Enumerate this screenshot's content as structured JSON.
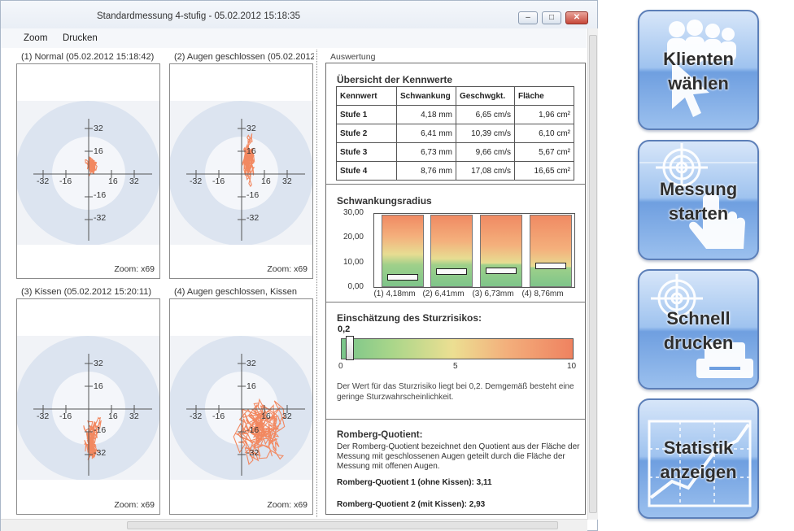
{
  "window": {
    "title": "Standardmessung 4-stufig - 05.02.2012 15:18:35",
    "controls": {
      "minimize": "–",
      "maximize": "□",
      "close": "✕"
    }
  },
  "menu": {
    "items": [
      "Zoom",
      "Drucken"
    ]
  },
  "plots": [
    {
      "title": "(1) Normal (05.02.2012 15:18:42)",
      "zoom": "Zoom: x69",
      "ticks": {
        "y_pos": [
          "32",
          "16"
        ],
        "y_neg": [
          "-16",
          "-32"
        ],
        "x_neg": [
          "-32",
          "-16"
        ],
        "x_pos": [
          "16",
          "32"
        ]
      }
    },
    {
      "title": "(2) Augen geschlossen (05.02.2012",
      "zoom": "Zoom: x69",
      "ticks": {
        "y_pos": [
          "32",
          "16"
        ],
        "y_neg": [
          "-16",
          "-32"
        ],
        "x_neg": [
          "-32",
          "-16"
        ],
        "x_pos": [
          "16",
          "32"
        ]
      }
    },
    {
      "title": "(3) Kissen (05.02.2012 15:20:11)",
      "zoom": "Zoom: x69",
      "ticks": {
        "y_pos": [
          "32",
          "16"
        ],
        "y_neg": [
          "-16",
          "-32"
        ],
        "x_neg": [
          "-32",
          "-16"
        ],
        "x_pos": [
          "16",
          "32"
        ]
      }
    },
    {
      "title": "(4) Augen geschlossen, Kissen",
      "zoom": "Zoom: x69",
      "ticks": {
        "y_pos": [
          "32",
          "16"
        ],
        "y_neg": [
          "-16",
          "-32"
        ],
        "x_neg": [
          "-32",
          "-16"
        ],
        "x_pos": [
          "16",
          "32"
        ]
      }
    }
  ],
  "evaluation": {
    "label": "Auswertung",
    "overview": {
      "title": "Übersicht der Kennwerte",
      "headers": [
        "Kennwert",
        "Schwankung",
        "Geschwgkt.",
        "Fläche"
      ],
      "rows": [
        [
          "Stufe 1",
          "4,18 mm",
          "6,65 cm/s",
          "1,96 cm²"
        ],
        [
          "Stufe 2",
          "6,41 mm",
          "10,39 cm/s",
          "6,10 cm²"
        ],
        [
          "Stufe 3",
          "6,73 mm",
          "9,66 cm/s",
          "5,67 cm²"
        ],
        [
          "Stufe 4",
          "8,76 mm",
          "17,08 cm/s",
          "16,65 cm²"
        ]
      ]
    },
    "sway": {
      "title": "Schwankungsradius",
      "y_ticks": [
        "30,00",
        "20,00",
        "10,00",
        "0,00"
      ],
      "bars": [
        {
          "label": "(1) 4,18mm",
          "value": 4.18
        },
        {
          "label": "(2) 6,41mm",
          "value": 6.41
        },
        {
          "label": "(3) 6,73mm",
          "value": 6.73
        },
        {
          "label": "(4) 8,76mm",
          "value": 8.76
        }
      ],
      "y_max": 30
    },
    "risk": {
      "title": "Einschätzung des Sturzrisikos:",
      "value_text": "0,2",
      "value": 0.2,
      "max": 10,
      "ticks": [
        "0",
        "5",
        "10"
      ],
      "note": "Der Wert für das Sturzrisiko liegt bei 0,2. Demgemäß besteht eine geringe Sturzwahrscheinlichkeit."
    },
    "romberg": {
      "title": "Romberg-Quotient:",
      "description": "Der Romberg-Quotient bezeichnet den Quotient aus der Fläche der Messung mit geschlossenen Augen geteilt durch die Fläche der Messung mit offenen Augen.",
      "q1": "Romberg-Quotient 1 (ohne Kissen): 3,11",
      "q2": "Romberg-Quotient 2 (mit Kissen): 2,93"
    }
  },
  "actions": [
    {
      "line1": "Klienten",
      "line2": "wählen",
      "icon": "clients-icon"
    },
    {
      "line1": "Messung",
      "line2": "starten",
      "icon": "target-hand-icon"
    },
    {
      "line1": "Schnell",
      "line2": "drucken",
      "icon": "target-printer-icon"
    },
    {
      "line1": "Statistik",
      "line2": "anzeigen",
      "icon": "statistics-chart-icon"
    }
  ],
  "colors": {
    "trace": "#f28860",
    "ring_outer": "#dce4f0",
    "button_blue": "#6f9fe0",
    "risk_low": "#79c58a",
    "risk_high": "#ef8260"
  }
}
